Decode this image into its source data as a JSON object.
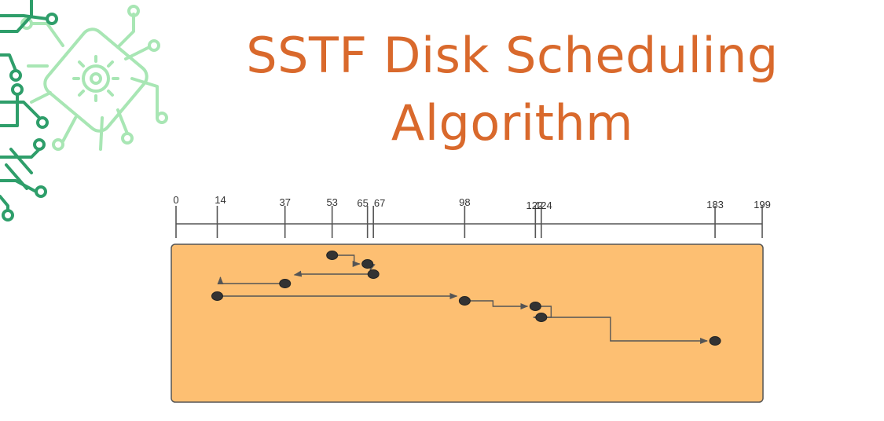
{
  "title": {
    "line1": "SSTF Disk Scheduling",
    "line2": "Algorithm"
  },
  "colors": {
    "title": "#d9692c",
    "panel_fill": "#fdbf72",
    "panel_stroke": "#555555",
    "axis": "#555555",
    "path": "#555555",
    "node": "#333333",
    "circuit_dark": "#2e9e6a",
    "circuit_light": "#a8e6b4"
  },
  "decoration": {
    "icon": "circuit-chip-gear-icon"
  },
  "axis": {
    "min": 0,
    "max": 199,
    "ticks": [
      0,
      14,
      37,
      53,
      65,
      67,
      98,
      122,
      124,
      183,
      199
    ],
    "tick_labels": [
      "0",
      "14",
      "37",
      "53",
      "65",
      "67",
      "98",
      "122",
      "124",
      "183",
      "199"
    ]
  },
  "head_sequence": [
    53,
    65,
    67,
    37,
    14,
    98,
    122,
    124,
    183
  ]
}
